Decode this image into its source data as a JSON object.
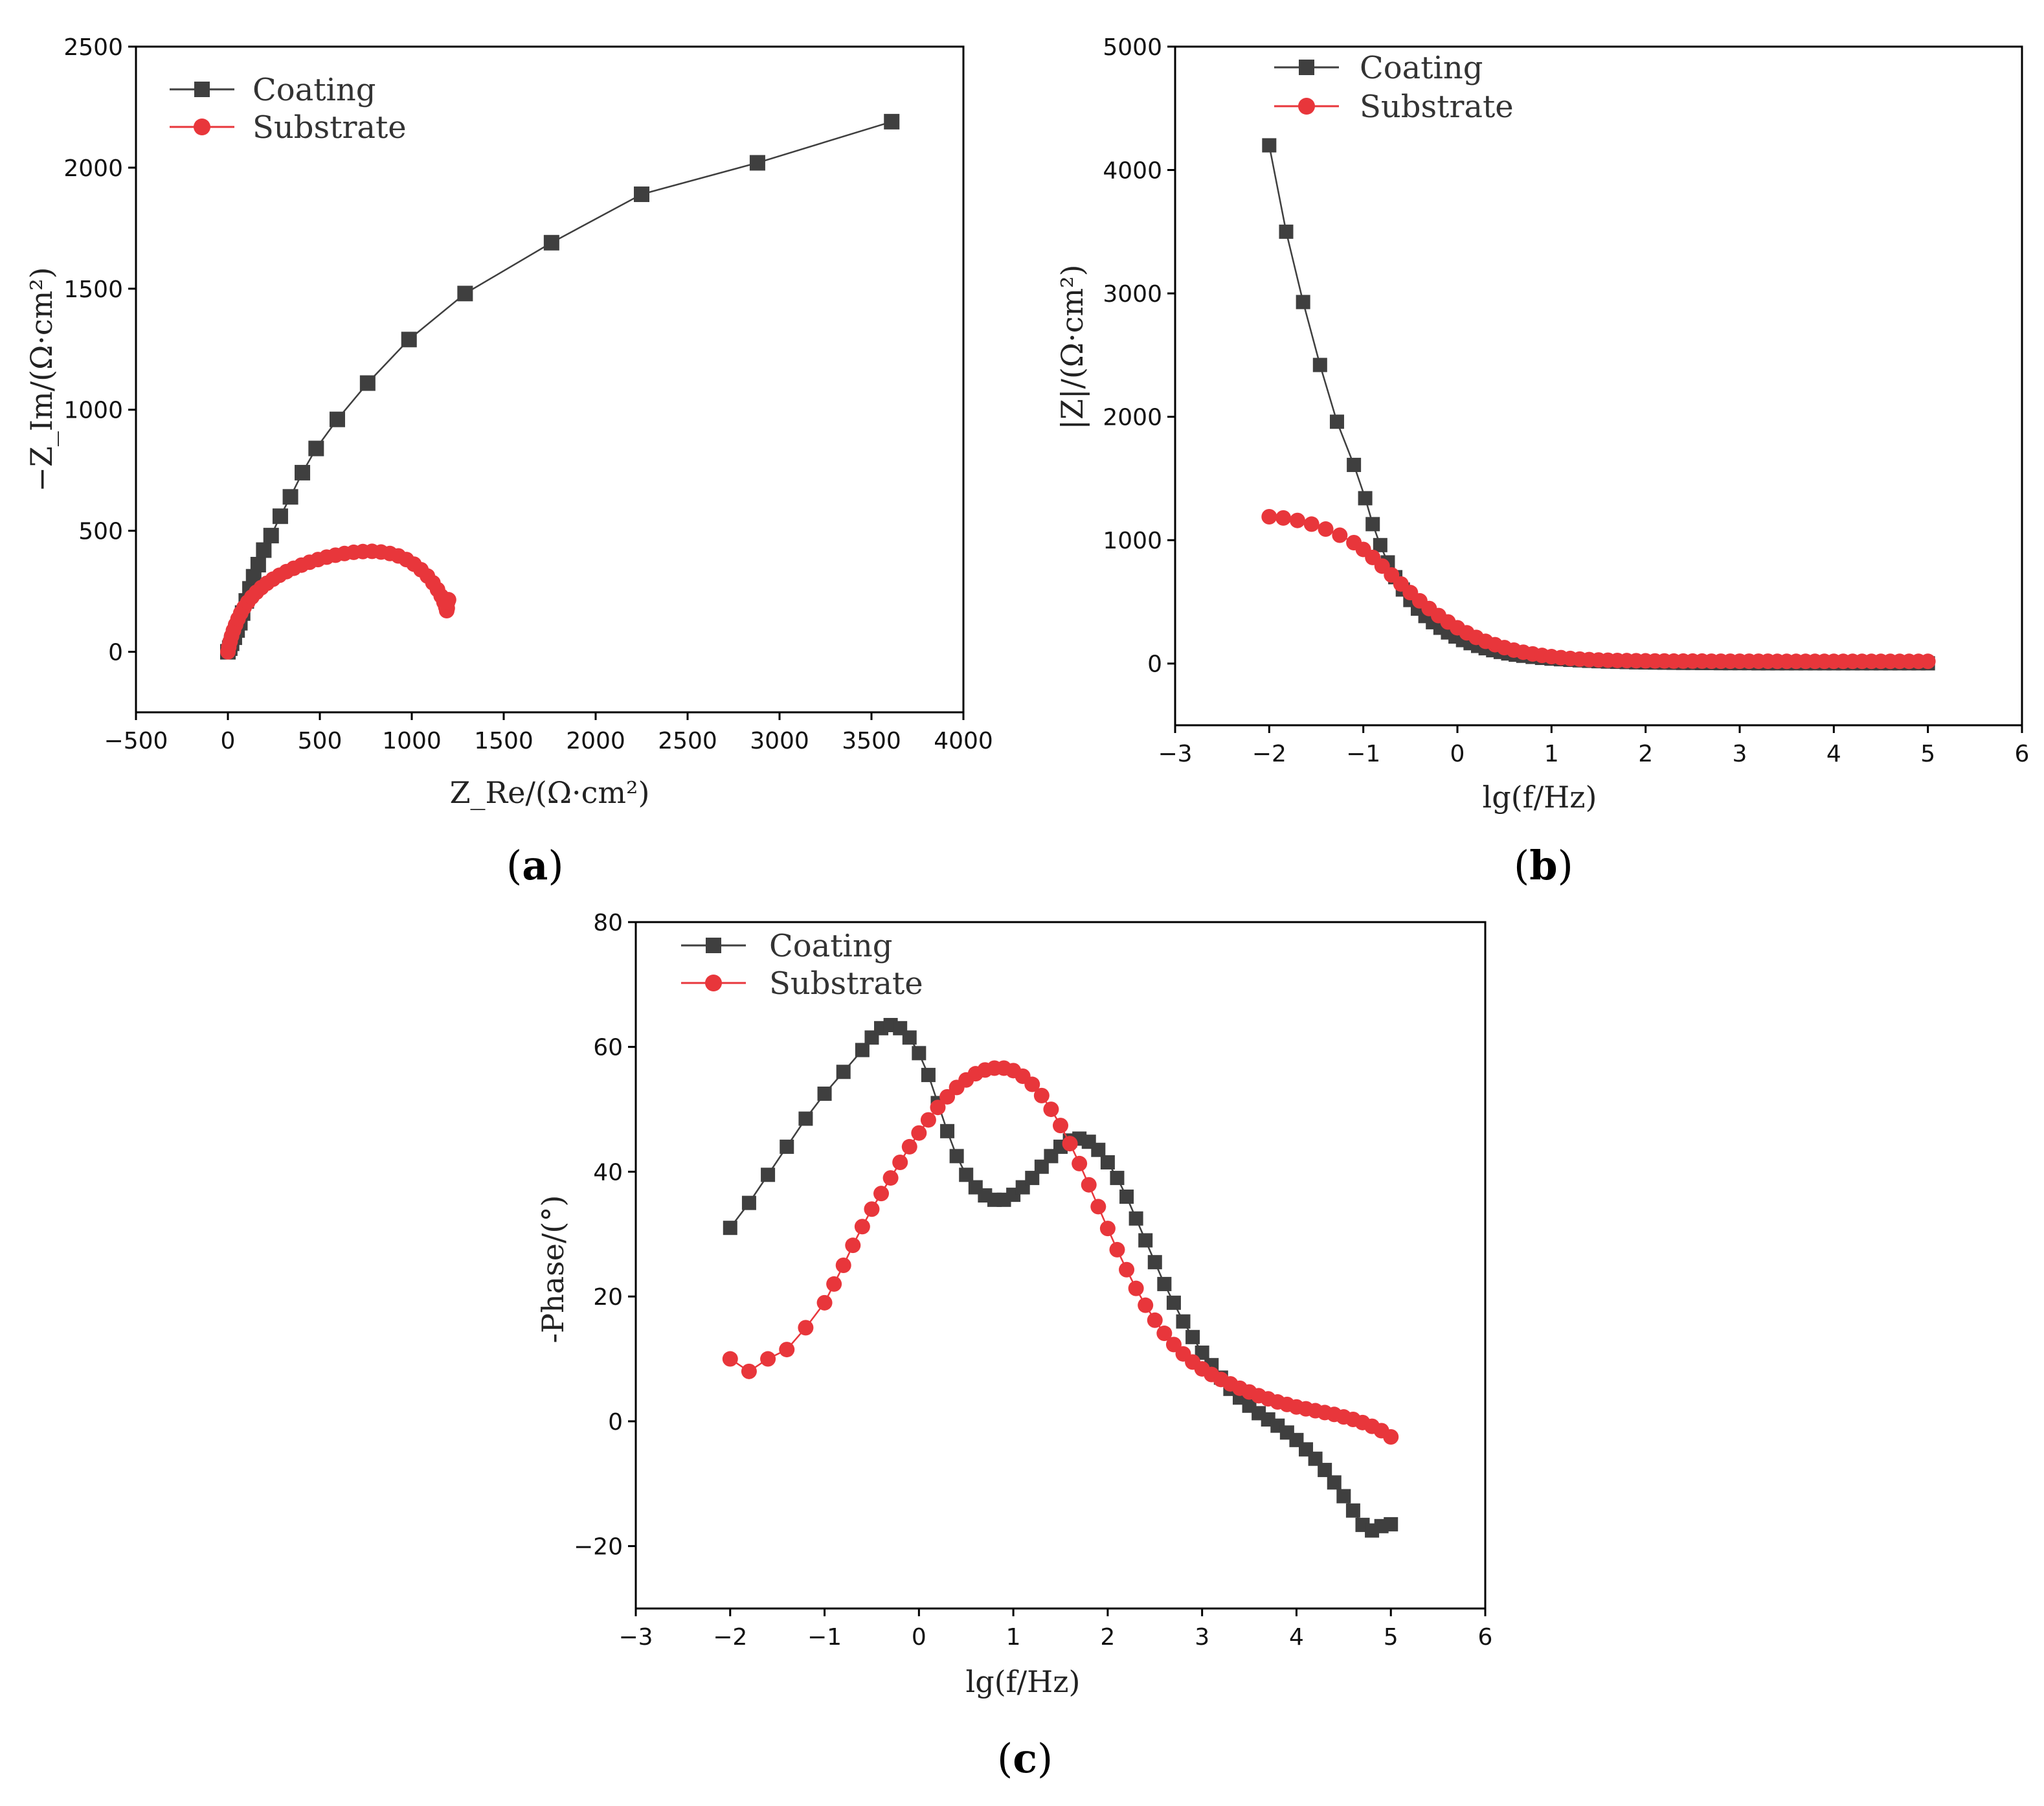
{
  "figure": {
    "labels": [
      "a",
      "b",
      "c"
    ]
  },
  "colors": {
    "coating": "#3f3f3f",
    "substrate": "#e8363b",
    "axis": "#000000"
  },
  "chart_data": [
    {
      "id": "a",
      "type": "scatter",
      "title": "",
      "xlabel": "Z_Re/(Ω·cm²)",
      "ylabel": "−Z_Im/(Ω·cm²)",
      "xlim": [
        -500,
        4000
      ],
      "ylim": [
        -250,
        2500
      ],
      "xticks": [
        -500,
        0,
        500,
        1000,
        1500,
        2000,
        2500,
        3000,
        3500,
        4000
      ],
      "yticks": [
        0,
        500,
        1000,
        1500,
        2000,
        2500
      ],
      "legend": [
        "Coating",
        "Substrate"
      ],
      "legend_position": "top-left",
      "series": [
        {
          "name": "Coating",
          "marker": "square",
          "x": [
            0,
            10,
            20,
            35,
            50,
            65,
            80,
            100,
            120,
            140,
            165,
            195,
            235,
            285,
            340,
            405,
            480,
            595,
            760,
            985,
            1290,
            1760,
            2250,
            2880,
            3610
          ],
          "y": [
            0,
            15,
            35,
            60,
            90,
            120,
            160,
            210,
            260,
            310,
            360,
            420,
            480,
            560,
            640,
            740,
            840,
            960,
            1110,
            1290,
            1480,
            1690,
            1890,
            2020,
            2190
          ]
        },
        {
          "name": "Substrate",
          "marker": "circle",
          "x": [
            0,
            5,
            12,
            20,
            30,
            42,
            55,
            70,
            88,
            108,
            130,
            155,
            182,
            212,
            245,
            280,
            318,
            358,
            400,
            444,
            490,
            537,
            585,
            634,
            684,
            734,
            784,
            833,
            881,
            927,
            971,
            1012,
            1050,
            1085,
            1115,
            1140,
            1160,
            1175,
            1185,
            1190,
            1193,
            1190,
            1195,
            1200
          ],
          "y": [
            0,
            20,
            42,
            65,
            88,
            112,
            136,
            160,
            183,
            205,
            226,
            246,
            265,
            283,
            300,
            316,
            331,
            345,
            358,
            370,
            381,
            391,
            399,
            406,
            411,
            414,
            415,
            412,
            406,
            396,
            381,
            362,
            339,
            313,
            285,
            257,
            230,
            205,
            185,
            170,
            180,
            195,
            205,
            215
          ]
        }
      ]
    },
    {
      "id": "b",
      "type": "scatter",
      "title": "",
      "xlabel": "lg(f/Hz)",
      "ylabel": "|Z|/(Ω·cm²)",
      "xlim": [
        -3,
        6
      ],
      "ylim": [
        -500,
        5000
      ],
      "xticks": [
        -3,
        -2,
        -1,
        0,
        1,
        2,
        3,
        4,
        5,
        6
      ],
      "yticks": [
        0,
        1000,
        2000,
        3000,
        4000,
        5000
      ],
      "legend": [
        "Coating",
        "Substrate"
      ],
      "legend_position": "top-left",
      "series": [
        {
          "name": "Coating",
          "marker": "square",
          "x": [
            -2.0,
            -1.82,
            -1.64,
            -1.46,
            -1.28,
            -1.1,
            -0.98,
            -0.9,
            -0.82,
            -0.74,
            -0.66,
            -0.58,
            -0.5,
            -0.42,
            -0.34,
            -0.26,
            -0.18,
            -0.1,
            -0.02,
            0.06,
            0.14,
            0.22,
            0.3,
            0.38,
            0.46,
            0.54,
            0.62,
            0.7,
            0.8,
            0.9,
            1.0,
            1.1,
            1.2,
            1.3,
            1.4,
            1.5,
            1.6,
            1.7,
            1.8,
            1.9,
            2.0,
            2.1,
            2.2,
            2.3,
            2.4,
            2.5,
            2.6,
            2.7,
            2.8,
            2.9,
            3.0,
            3.1,
            3.2,
            3.3,
            3.4,
            3.5,
            3.6,
            3.7,
            3.8,
            3.9,
            4.0,
            4.1,
            4.2,
            4.3,
            4.4,
            4.5,
            4.6,
            4.7,
            4.8,
            4.9,
            5.0
          ],
          "y": [
            4200,
            3500,
            2930,
            2420,
            1960,
            1610,
            1340,
            1130,
            960,
            820,
            700,
            600,
            515,
            445,
            385,
            335,
            290,
            252,
            219,
            190,
            165,
            143,
            124,
            108,
            94,
            82,
            72,
            63,
            54,
            46,
            40,
            35,
            30,
            26,
            22,
            19,
            16,
            14,
            12,
            10,
            9,
            8,
            7,
            6,
            5,
            5,
            4,
            4,
            3,
            3,
            3,
            3,
            2,
            2,
            2,
            2,
            2,
            2,
            2,
            2,
            2,
            2,
            2,
            2,
            2,
            2,
            2,
            2,
            2,
            2,
            2
          ]
        },
        {
          "name": "Substrate",
          "marker": "circle",
          "x": [
            -2.0,
            -1.85,
            -1.7,
            -1.55,
            -1.4,
            -1.25,
            -1.1,
            -1.0,
            -0.9,
            -0.8,
            -0.7,
            -0.6,
            -0.5,
            -0.4,
            -0.3,
            -0.2,
            -0.1,
            0.0,
            0.1,
            0.2,
            0.3,
            0.4,
            0.5,
            0.6,
            0.7,
            0.8,
            0.9,
            1.0,
            1.1,
            1.2,
            1.3,
            1.4,
            1.5,
            1.6,
            1.7,
            1.8,
            1.9,
            2.0,
            2.1,
            2.2,
            2.3,
            2.4,
            2.5,
            2.6,
            2.7,
            2.8,
            2.9,
            3.0,
            3.1,
            3.2,
            3.3,
            3.4,
            3.5,
            3.6,
            3.7,
            3.8,
            3.9,
            4.0,
            4.1,
            4.2,
            4.3,
            4.4,
            4.5,
            4.6,
            4.7,
            4.8,
            4.9,
            5.0
          ],
          "y": [
            1190,
            1180,
            1160,
            1130,
            1090,
            1040,
            980,
            925,
            860,
            790,
            718,
            645,
            575,
            508,
            446,
            389,
            337,
            290,
            249,
            212,
            180,
            153,
            129,
            109,
            92,
            78,
            66,
            56,
            48,
            41,
            36,
            32,
            29,
            27,
            25,
            24,
            23,
            22,
            21,
            21,
            20,
            20,
            20,
            20,
            19,
            19,
            19,
            19,
            19,
            19,
            19,
            18,
            18,
            18,
            18,
            18,
            18,
            18,
            18,
            18,
            18,
            18,
            18,
            18,
            18,
            18,
            18,
            18
          ]
        }
      ]
    },
    {
      "id": "c",
      "type": "scatter",
      "title": "",
      "xlabel": "lg(f/Hz)",
      "ylabel": "-Phase/(°)",
      "xlim": [
        -3,
        6
      ],
      "ylim": [
        -30,
        80
      ],
      "xticks": [
        -3,
        -2,
        -1,
        0,
        1,
        2,
        3,
        4,
        5,
        6
      ],
      "yticks": [
        -20,
        0,
        20,
        40,
        60,
        80
      ],
      "legend": [
        "Coating",
        "Substrate"
      ],
      "legend_position": "top-left",
      "series": [
        {
          "name": "Coating",
          "marker": "square",
          "x": [
            -2.0,
            -1.8,
            -1.6,
            -1.4,
            -1.2,
            -1.0,
            -0.8,
            -0.6,
            -0.5,
            -0.4,
            -0.3,
            -0.2,
            -0.1,
            0.0,
            0.1,
            0.2,
            0.3,
            0.4,
            0.5,
            0.6,
            0.7,
            0.8,
            0.9,
            1.0,
            1.1,
            1.2,
            1.3,
            1.4,
            1.5,
            1.6,
            1.7,
            1.8,
            1.9,
            2.0,
            2.1,
            2.2,
            2.3,
            2.4,
            2.5,
            2.6,
            2.7,
            2.8,
            2.9,
            3.0,
            3.1,
            3.2,
            3.3,
            3.4,
            3.5,
            3.6,
            3.7,
            3.8,
            3.9,
            4.0,
            4.1,
            4.2,
            4.3,
            4.4,
            4.5,
            4.6,
            4.7,
            4.8,
            4.9,
            5.0
          ],
          "y": [
            31,
            35,
            39.5,
            44,
            48.5,
            52.5,
            56,
            59.5,
            61.5,
            63,
            63.5,
            63,
            61.5,
            59,
            55.5,
            51,
            46.5,
            42.5,
            39.5,
            37.5,
            36.2,
            35.5,
            35.5,
            36.3,
            37.5,
            39,
            40.8,
            42.5,
            44,
            45,
            45.3,
            44.8,
            43.5,
            41.5,
            39,
            36,
            32.5,
            29,
            25.5,
            22,
            19,
            16,
            13.5,
            11,
            9,
            7,
            5.2,
            3.8,
            2.5,
            1.3,
            0.3,
            -0.7,
            -1.8,
            -3,
            -4.5,
            -6,
            -7.8,
            -9.8,
            -12,
            -14.3,
            -16.6,
            -17.5,
            -16.8,
            -16.5
          ]
        },
        {
          "name": "Substrate",
          "marker": "circle",
          "x": [
            -2.0,
            -1.8,
            -1.6,
            -1.4,
            -1.2,
            -1.0,
            -0.9,
            -0.8,
            -0.7,
            -0.6,
            -0.5,
            -0.4,
            -0.3,
            -0.2,
            -0.1,
            0.0,
            0.1,
            0.2,
            0.3,
            0.4,
            0.5,
            0.6,
            0.7,
            0.8,
            0.9,
            1.0,
            1.1,
            1.2,
            1.3,
            1.4,
            1.5,
            1.6,
            1.7,
            1.8,
            1.9,
            2.0,
            2.1,
            2.2,
            2.3,
            2.4,
            2.5,
            2.6,
            2.7,
            2.8,
            2.9,
            3.0,
            3.1,
            3.2,
            3.3,
            3.4,
            3.5,
            3.6,
            3.7,
            3.8,
            3.9,
            4.0,
            4.1,
            4.2,
            4.3,
            4.4,
            4.5,
            4.6,
            4.7,
            4.8,
            4.9,
            5.0
          ],
          "y": [
            10,
            8,
            10,
            11.5,
            15,
            19,
            22,
            25,
            28.2,
            31.2,
            34,
            36.5,
            39,
            41.5,
            44,
            46.2,
            48.3,
            50.3,
            52,
            53.5,
            54.7,
            55.7,
            56.3,
            56.6,
            56.6,
            56.2,
            55.3,
            54,
            52.2,
            50,
            47.4,
            44.5,
            41.3,
            37.9,
            34.4,
            30.9,
            27.5,
            24.3,
            21.3,
            18.6,
            16.2,
            14.1,
            12.3,
            10.8,
            9.5,
            8.4,
            7.5,
            6.7,
            6,
            5.3,
            4.7,
            4.1,
            3.6,
            3.1,
            2.7,
            2.3,
            2,
            1.7,
            1.4,
            1.1,
            0.7,
            0.3,
            -0.2,
            -0.8,
            -1.5,
            -2.5
          ]
        }
      ]
    }
  ]
}
